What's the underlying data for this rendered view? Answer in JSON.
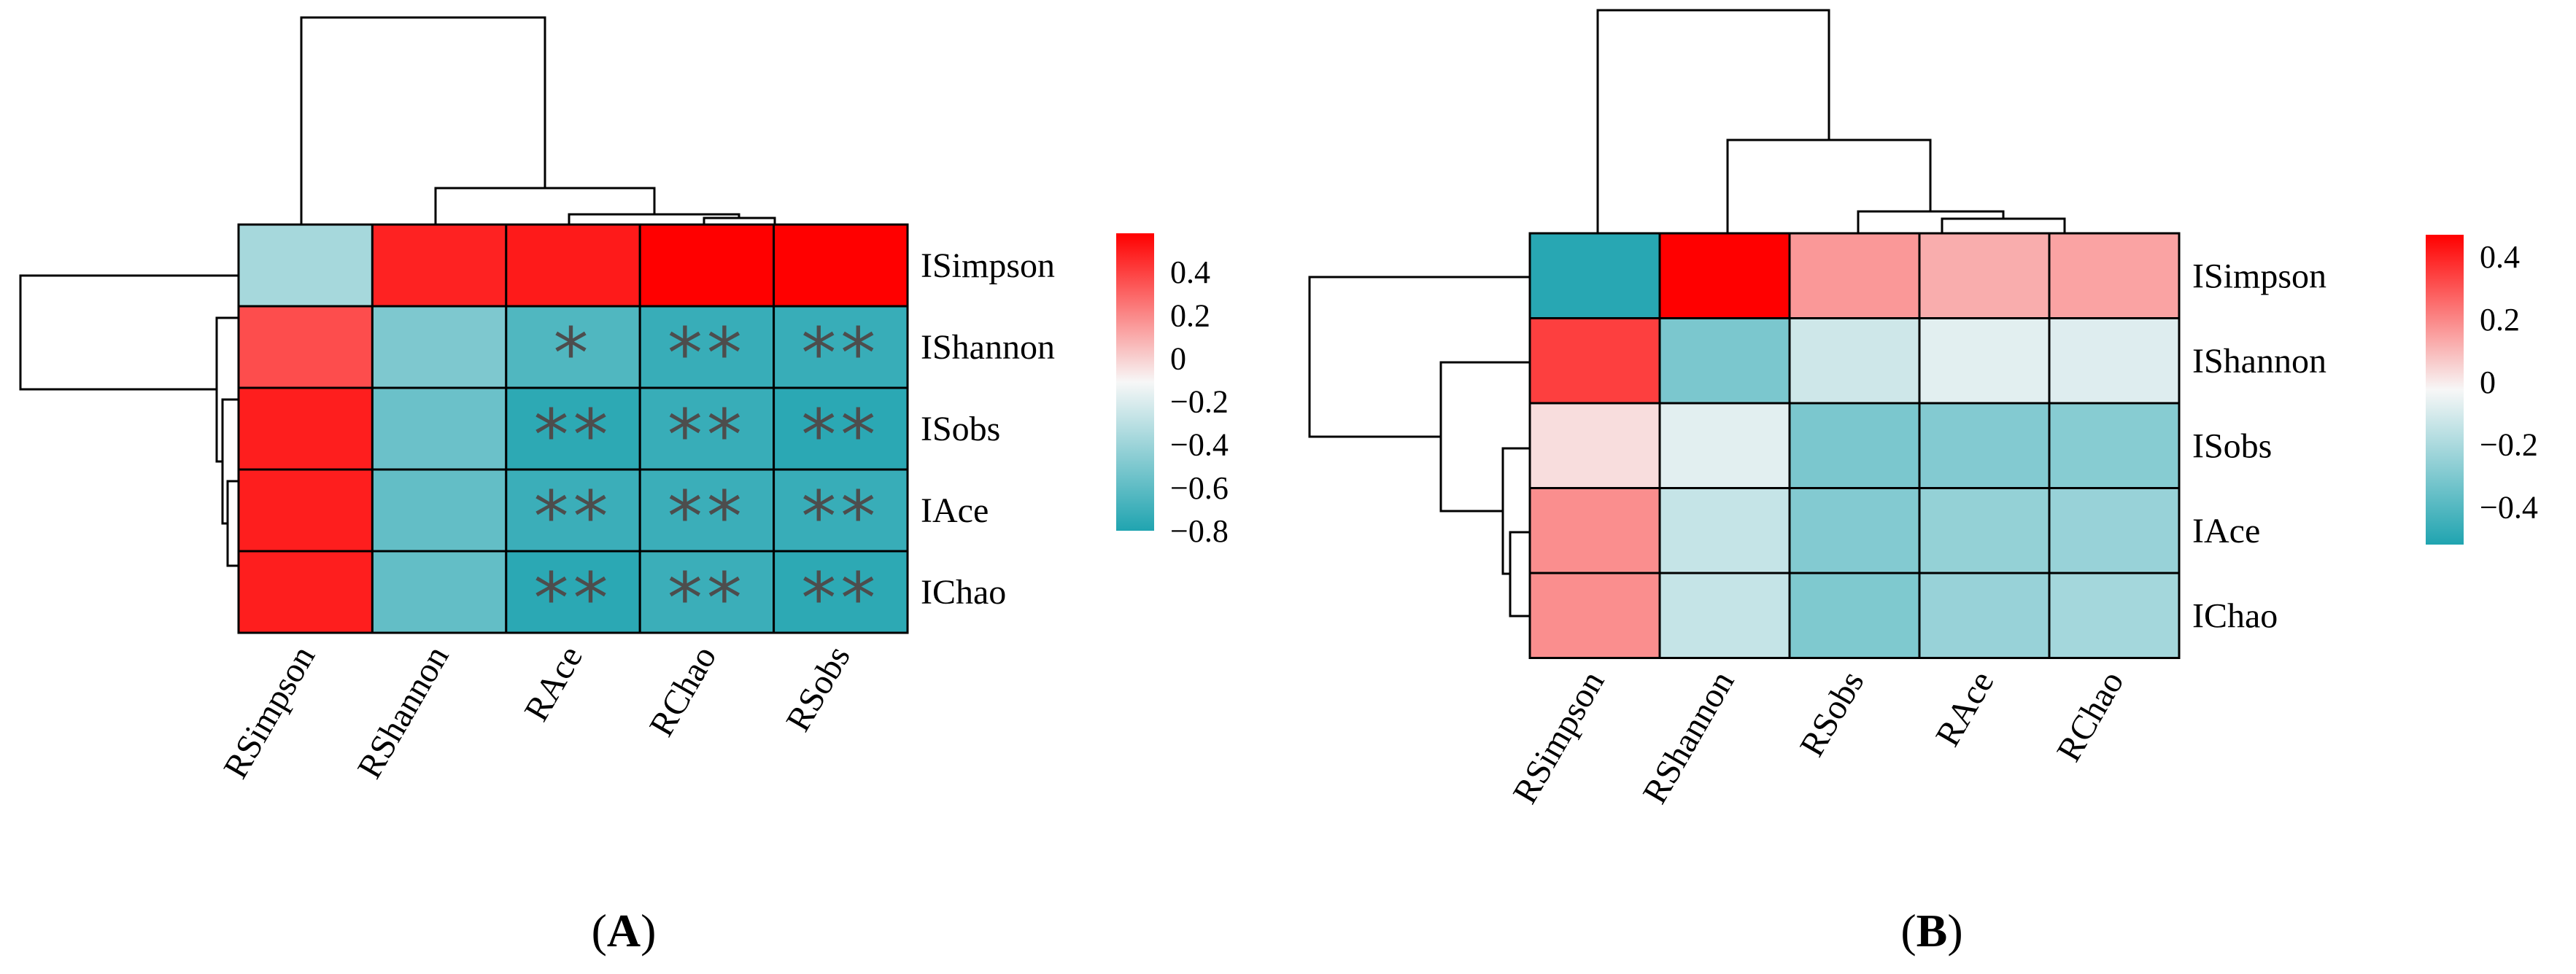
{
  "figure_title": "",
  "colors": {
    "negative": "#20a4b0",
    "neutral": "#f7f7f7",
    "positive": "#ff0000",
    "significance": "#4d4d4d",
    "grid": "#000000"
  },
  "chart_data": [
    {
      "type": "heatmap",
      "panel_label": "A",
      "panel_label_open": "(",
      "panel_label_close": ")",
      "title": "",
      "rows": [
        "ISimpson",
        "IShannon",
        "ISobs",
        "IAce",
        "IChao"
      ],
      "columns": [
        "RSimpson",
        "RShannon",
        "RAce",
        "RChao",
        "RSobs"
      ],
      "values": [
        [
          -0.3,
          0.5,
          0.52,
          0.58,
          0.58
        ],
        [
          0.4,
          -0.45,
          -0.62,
          -0.71,
          -0.71
        ],
        [
          0.51,
          -0.52,
          -0.75,
          -0.71,
          -0.76
        ],
        [
          0.51,
          -0.55,
          -0.7,
          -0.7,
          -0.71
        ],
        [
          0.51,
          -0.55,
          -0.76,
          -0.7,
          -0.75
        ]
      ],
      "significance": [
        [
          "",
          "",
          "",
          "",
          ""
        ],
        [
          "",
          "",
          "*",
          "**",
          "**"
        ],
        [
          "",
          "",
          "**",
          "**",
          "**"
        ],
        [
          "",
          "",
          "**",
          "**",
          "**"
        ],
        [
          "",
          "",
          "**",
          "**",
          "**"
        ]
      ],
      "colorbar": {
        "range": [
          -0.8,
          0.58
        ],
        "ticks": [
          0.4,
          0.2,
          0,
          -0.2,
          -0.4,
          -0.6,
          -0.8
        ],
        "tick_labels": [
          "0.4",
          "0.2",
          "0",
          "−0.2",
          "−0.4",
          "−0.6",
          "−0.8"
        ]
      }
    },
    {
      "type": "heatmap",
      "panel_label": "B",
      "panel_label_open": "(",
      "panel_label_close": ")",
      "title": "",
      "rows": [
        "ISimpson",
        "IShannon",
        "ISobs",
        "IAce",
        "IChao"
      ],
      "columns": [
        "RSimpson",
        "RShannon",
        "RSobs",
        "RAce",
        "RChao"
      ],
      "values": [
        [
          -0.5,
          0.47,
          0.18,
          0.14,
          0.16
        ],
        [
          0.35,
          -0.3,
          -0.1,
          -0.05,
          -0.06
        ],
        [
          0.05,
          -0.05,
          -0.3,
          -0.28,
          -0.27
        ],
        [
          0.2,
          -0.12,
          -0.28,
          -0.24,
          -0.23
        ],
        [
          0.2,
          -0.12,
          -0.29,
          -0.23,
          -0.2
        ]
      ],
      "significance": [
        [
          "",
          "",
          "",
          "",
          ""
        ],
        [
          "",
          "",
          "",
          "",
          ""
        ],
        [
          "",
          "",
          "",
          "",
          ""
        ],
        [
          "",
          "",
          "",
          "",
          ""
        ],
        [
          "",
          "",
          "",
          "",
          ""
        ]
      ],
      "colorbar": {
        "range": [
          -0.52,
          0.47
        ],
        "ticks": [
          0.4,
          0.2,
          0,
          -0.2,
          -0.4
        ],
        "tick_labels": [
          "0.4",
          "0.2",
          "0",
          "−0.2",
          "−0.4"
        ]
      }
    }
  ]
}
